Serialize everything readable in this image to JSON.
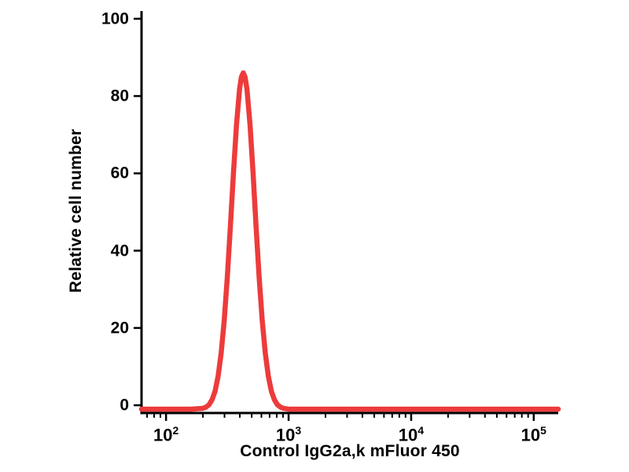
{
  "chart_data": {
    "type": "line",
    "title": "",
    "xlabel": "Control IgG2a,k mFluor 450",
    "ylabel": "Relative cell number",
    "x_scale": "log",
    "x_tick_base": "10",
    "x_major_ticks_exp": [
      2,
      3,
      4,
      5
    ],
    "x_range_log10": [
      1.8,
      5.2
    ],
    "y_ticks": [
      0,
      20,
      40,
      60,
      80,
      100
    ],
    "ylim": [
      -2,
      102
    ],
    "grid": false,
    "legend": "none",
    "curve_color": "#ed3b3b",
    "axis_color": "#000000",
    "background_color": "#ffffff",
    "peak": {
      "x_log10": 2.63,
      "x_approx": 430,
      "height": 86
    },
    "series": [
      {
        "name": "Control IgG2a,k mFluor 450",
        "x_log10": [
          1.8,
          2.0,
          2.1,
          2.2,
          2.25,
          2.3,
          2.325,
          2.35,
          2.375,
          2.4,
          2.425,
          2.45,
          2.475,
          2.5,
          2.525,
          2.55,
          2.575,
          2.6,
          2.615,
          2.63,
          2.645,
          2.66,
          2.685,
          2.71,
          2.735,
          2.76,
          2.785,
          2.81,
          2.835,
          2.86,
          2.885,
          2.91,
          2.935,
          2.96,
          3.0,
          3.1,
          3.3,
          3.6,
          4.0,
          4.5,
          5.0,
          5.2
        ],
        "y": [
          -1,
          -1,
          -1,
          -1,
          -0.9,
          -0.8,
          -0.5,
          0.1,
          1.4,
          3.6,
          7.5,
          13.5,
          22,
          33.1,
          46.2,
          60,
          72.6,
          81.8,
          84.9,
          86,
          84.9,
          81.8,
          72.6,
          60,
          46.2,
          33.1,
          22,
          13.5,
          7.5,
          3.6,
          1.4,
          0.1,
          -0.5,
          -0.8,
          -1,
          -1,
          -1,
          -1,
          -1,
          -1,
          -1,
          -1
        ]
      }
    ]
  }
}
